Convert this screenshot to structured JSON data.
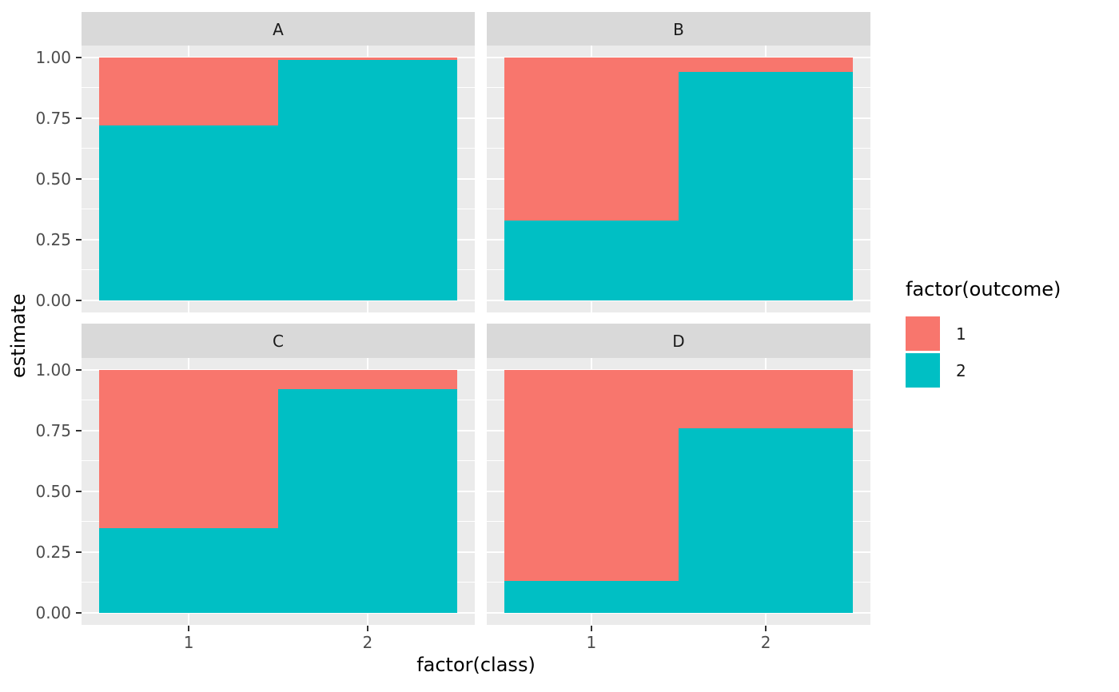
{
  "chart_data": {
    "type": "bar",
    "variant": "stacked_fill_faceted",
    "title": "",
    "xlabel": "factor(class)",
    "ylabel": "estimate",
    "ylim": [
      0,
      1
    ],
    "grid": "on",
    "x_ticks": [
      {
        "label": "1",
        "value": 1
      },
      {
        "label": "2",
        "value": 2
      }
    ],
    "y_ticks": [
      {
        "label": "0.00",
        "value": 0
      },
      {
        "label": "0.25",
        "value": 0.25
      },
      {
        "label": "0.50",
        "value": 0.5
      },
      {
        "label": "0.75",
        "value": 0.75
      },
      {
        "label": "1.00",
        "value": 1
      }
    ],
    "y_minor_ticks": [
      0.125,
      0.375,
      0.625,
      0.875
    ],
    "facets": [
      {
        "label": "A",
        "stacks": [
          {
            "category": "1",
            "segments": [
              {
                "outcome": "1",
                "value": 0.28
              },
              {
                "outcome": "2",
                "value": 0.72
              }
            ]
          },
          {
            "category": "2",
            "segments": [
              {
                "outcome": "1",
                "value": 0.01
              },
              {
                "outcome": "2",
                "value": 0.99
              }
            ]
          }
        ]
      },
      {
        "label": "B",
        "stacks": [
          {
            "category": "1",
            "segments": [
              {
                "outcome": "1",
                "value": 0.67
              },
              {
                "outcome": "2",
                "value": 0.33
              }
            ]
          },
          {
            "category": "2",
            "segments": [
              {
                "outcome": "1",
                "value": 0.06
              },
              {
                "outcome": "2",
                "value": 0.94
              }
            ]
          }
        ]
      },
      {
        "label": "C",
        "stacks": [
          {
            "category": "1",
            "segments": [
              {
                "outcome": "1",
                "value": 0.65
              },
              {
                "outcome": "2",
                "value": 0.35
              }
            ]
          },
          {
            "category": "2",
            "segments": [
              {
                "outcome": "1",
                "value": 0.08
              },
              {
                "outcome": "2",
                "value": 0.92
              }
            ]
          }
        ]
      },
      {
        "label": "D",
        "stacks": [
          {
            "category": "1",
            "segments": [
              {
                "outcome": "1",
                "value": 0.87
              },
              {
                "outcome": "2",
                "value": 0.13
              }
            ]
          },
          {
            "category": "2",
            "segments": [
              {
                "outcome": "1",
                "value": 0.24
              },
              {
                "outcome": "2",
                "value": 0.76
              }
            ]
          }
        ]
      }
    ],
    "legend": {
      "title": "factor(outcome)",
      "position": "right",
      "entries": [
        {
          "label": "1",
          "color": "#F8766D"
        },
        {
          "label": "2",
          "color": "#00BFC4"
        }
      ]
    },
    "theme": {
      "plot_background": "#FFFFFF",
      "panel_background": "#EBEBEB",
      "strip_background": "#D9D9D9",
      "gridline_color": "#FFFFFF",
      "tick_mark_color": "#333333",
      "tick_text_color": "#4D4D4D",
      "strip_text_color": "#1A1A1A",
      "axis_title_color": "#000000"
    }
  }
}
